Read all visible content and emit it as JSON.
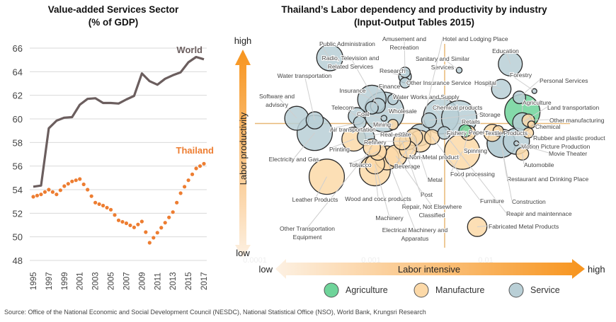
{
  "source": "Source: Office of the National Economic and Social Development Council (NESDC), National Statistical Office (NSO), World Bank, Krungsri Research",
  "colors": {
    "world": "#6b5e5e",
    "thailand": "#ed7d31",
    "agriculture": "#6fd49a",
    "manufacture": "#fcd9a8",
    "service": "#b9cfd6",
    "axis_arrow": "#f7941d",
    "gridline": "#d9d9d9",
    "quadrant_line": "#e8b877"
  },
  "chart_data": [
    {
      "type": "line",
      "title": "Value-added Services Sector\n(% of GDP)",
      "title_lines": [
        "Value-added Services Sector",
        "(% of GDP)"
      ],
      "xlabel": "",
      "ylabel": "",
      "ylim": [
        48,
        66
      ],
      "yticks": [
        48,
        50,
        52,
        54,
        56,
        58,
        60,
        62,
        64,
        66
      ],
      "xtick_labels": [
        "1995",
        "1997",
        "1999",
        "2001",
        "2003",
        "2005",
        "2007",
        "2009",
        "2011",
        "2013",
        "2015",
        "2017"
      ],
      "grid": true,
      "x": [
        1995,
        1996,
        1997,
        1998,
        1999,
        2000,
        2001,
        2002,
        2003,
        2004,
        2005,
        2006,
        2007,
        2008,
        2009,
        2010,
        2011,
        2012,
        2013,
        2014,
        2015,
        2016,
        2017
      ],
      "series": [
        {
          "name": "World",
          "style": "solid",
          "values": [
            54.25,
            54.35,
            59.2,
            59.85,
            60.1,
            60.15,
            61.2,
            61.7,
            61.75,
            61.35,
            61.35,
            61.3,
            61.65,
            61.95,
            63.85,
            63.2,
            62.9,
            63.4,
            63.7,
            63.95,
            64.8,
            65.25,
            65.05
          ]
        },
        {
          "name": "Thailand",
          "style": "dotted",
          "values": [
            53.4,
            53.6,
            54.0,
            53.6,
            54.3,
            54.7,
            54.9,
            54.0,
            52.9,
            52.65,
            52.3,
            51.4,
            51.15,
            50.8,
            51.3,
            49.5,
            50.35,
            51.2,
            52.1,
            53.7,
            54.8,
            55.8,
            56.2
          ]
        }
      ]
    },
    {
      "type": "scatter",
      "subtype": "bubble",
      "title": "Thailand’s Labor dependency and productivity by industry\n(Input-Output Tables 2015)",
      "title_lines": [
        "Thailand’s Labor dependency and productivity by industry",
        "(Input-Output Tables 2015)"
      ],
      "xlabel": "Labor intensive",
      "ylabel": "Labor productivity",
      "x_axis_ends": {
        "low": "low",
        "high": "high"
      },
      "y_axis_ends": {
        "low": "low",
        "high": "high"
      },
      "x_scale": "log",
      "faint_xtick_labels": [
        "0.0001",
        "0.001",
        "0.01"
      ],
      "legend": {
        "placement": "bottom",
        "entries": [
          {
            "name": "Agriculture",
            "key": "agriculture"
          },
          {
            "name": "Manufacture",
            "key": "manufacture"
          },
          {
            "name": "Service",
            "key": "service"
          }
        ]
      },
      "note": "Positions in relative chart units (x: 0 = low labor intensity, 100 = high; y: 0 = low productivity, 100 = high). Size in relative units.",
      "points": [
        {
          "name": "Public Administration",
          "group": "service",
          "x": 19,
          "y": 91,
          "size": 5,
          "label": "Public Administration"
        },
        {
          "name": "Radio, Television and Related Services",
          "group": "service",
          "x": 35,
          "y": 68,
          "size": 2.5,
          "label": "Radio, Television and\nRelated Services"
        },
        {
          "name": "Water transportation",
          "group": "service",
          "x": 14,
          "y": 61,
          "size": 3,
          "label": "Water transportation"
        },
        {
          "name": "Software and advisory",
          "group": "service",
          "x": 8,
          "y": 62,
          "size": 4.5,
          "label": "Software and\nadvisory"
        },
        {
          "name": "Electricity and Gas",
          "group": "service",
          "x": 14,
          "y": 55,
          "size": 7,
          "label": "Electricity and Gas"
        },
        {
          "name": "Telecom",
          "group": "service",
          "x": 28,
          "y": 63,
          "size": 3,
          "label": "Telecom"
        },
        {
          "name": "Coal",
          "group": "service",
          "x": 37,
          "y": 62,
          "size": 0.5,
          "label": "Coal"
        },
        {
          "name": "Insurance",
          "group": "service",
          "x": 33,
          "y": 71,
          "size": 5.5,
          "label": "Insurance"
        },
        {
          "name": "Finance",
          "group": "service",
          "x": 33,
          "y": 67,
          "size": 2,
          "label": "Finance"
        },
        {
          "name": "Research",
          "group": "service",
          "x": 44,
          "y": 82,
          "size": 2,
          "label": "Research"
        },
        {
          "name": "Other Insurance Service",
          "group": "service",
          "x": 44,
          "y": 79,
          "size": 1.5,
          "label": "Other Insurance Service"
        },
        {
          "name": "Amusement and Recreation",
          "group": "service",
          "x": 44,
          "y": 84,
          "size": 1.5,
          "label": "Amusement and\nRecreation"
        },
        {
          "name": "Sanitary and Similar Services",
          "group": "service",
          "x": 62,
          "y": 85,
          "size": 0.5,
          "label": "Sanitary and Similar\nServices"
        },
        {
          "name": "Hotel and Lodging Place",
          "group": "service",
          "x": 49,
          "y": 54,
          "size": 4,
          "label": "Hotel and Lodging Place"
        },
        {
          "name": "Education",
          "group": "service",
          "x": 79,
          "y": 88,
          "size": 4.5,
          "label": "Education"
        },
        {
          "name": "Hospital",
          "group": "service",
          "x": 76,
          "y": 76,
          "size": 3.5,
          "label": "Hospital"
        },
        {
          "name": "Forestry",
          "group": "service",
          "x": 87,
          "y": 75,
          "size": 0.3,
          "label": "Forestry"
        },
        {
          "name": "Personal Services",
          "group": "service",
          "x": 82,
          "y": 72,
          "size": 2,
          "label": "Personal Services"
        },
        {
          "name": "Water Works and Supply",
          "group": "service",
          "x": 40,
          "y": 71,
          "size": 1.5,
          "label": "Water Works and Supply"
        },
        {
          "name": "Wholesale",
          "group": "service",
          "x": 37,
          "y": 65,
          "size": 8,
          "label": "Wholesale"
        },
        {
          "name": "Air transportation",
          "group": "service",
          "x": 29,
          "y": 60,
          "size": 2,
          "label": "Air transportation"
        },
        {
          "name": "Mining",
          "group": "manufacture",
          "x": 40,
          "y": 59,
          "size": 1.5,
          "label": "Mining"
        },
        {
          "name": "Chemical products",
          "group": "service",
          "x": 56,
          "y": 63,
          "size": 7,
          "label": "Chemical products"
        },
        {
          "name": "Storage",
          "group": "service",
          "x": 52,
          "y": 61,
          "size": 2.5,
          "label": "Storage"
        },
        {
          "name": "Retails",
          "group": "service",
          "x": 62,
          "y": 62,
          "size": 7,
          "label": "Retails"
        },
        {
          "name": "Agriculture",
          "group": "agriculture",
          "x": 83,
          "y": 65,
          "size": 7,
          "label": "Agriculture"
        },
        {
          "name": "Land transportation",
          "group": "service",
          "x": 83,
          "y": 60,
          "size": 3.5,
          "label": "Land transportation"
        },
        {
          "name": "Other manufacturing",
          "group": "manufacture",
          "x": 85,
          "y": 61,
          "size": 2,
          "label": "Other manufacturing"
        },
        {
          "name": "Chemical",
          "group": "manufacture",
          "x": 86,
          "y": 59,
          "size": 0.8,
          "label": "Chemical"
        },
        {
          "name": "Rubber and plastic product",
          "group": "manufacture",
          "x": 85,
          "y": 55,
          "size": 1.5,
          "label": "Rubber and plastic product"
        },
        {
          "name": "Motion Picture Production",
          "group": "service",
          "x": 81,
          "y": 51,
          "size": 5,
          "label": "Motion Picture Production"
        },
        {
          "name": "Movie Theater",
          "group": "service",
          "x": 81,
          "y": 50,
          "size": 0.3,
          "label": "Movie Theater"
        },
        {
          "name": "Automobile",
          "group": "manufacture",
          "x": 83,
          "y": 45,
          "size": 2,
          "label": "Automobile"
        },
        {
          "name": "Restaurant and Drinking Place",
          "group": "service",
          "x": 76,
          "y": 50,
          "size": 5.5,
          "label": "Restaurant and Drinking Place"
        },
        {
          "name": "Construction",
          "group": "service",
          "x": 76,
          "y": 50,
          "size": 5.5,
          "label": "Construction"
        },
        {
          "name": "Repair and maintenance",
          "group": "service",
          "x": 57,
          "y": 55,
          "size": 2,
          "label": "Reapir and maintennace"
        },
        {
          "name": "Fishery",
          "group": "agriculture",
          "x": 64,
          "y": 56,
          "size": 2,
          "label": "Fishery"
        },
        {
          "name": "Paper",
          "group": "manufacture",
          "x": 73,
          "y": 55,
          "size": 3,
          "label": "Paper"
        },
        {
          "name": "Textile Products",
          "group": "manufacture",
          "x": 75,
          "y": 56,
          "size": 1.5,
          "label": "Textile Products"
        },
        {
          "name": "Spinning",
          "group": "manufacture",
          "x": 65,
          "y": 55,
          "size": 2.5,
          "label": "Spinning"
        },
        {
          "name": "Food processing",
          "group": "manufacture",
          "x": 63,
          "y": 46,
          "size": 7,
          "label": "Food processing"
        },
        {
          "name": "Furniture",
          "group": "manufacture",
          "x": 53,
          "y": 53,
          "size": 2.5,
          "label": "Furniture"
        },
        {
          "name": "Real-estate",
          "group": "service",
          "x": 31,
          "y": 53,
          "size": 3,
          "label": "Real-estate"
        },
        {
          "name": "Refinery",
          "group": "service",
          "x": 45,
          "y": 51,
          "size": 3,
          "label": "Refinery"
        },
        {
          "name": "Printing",
          "group": "manufacture",
          "x": 27,
          "y": 52,
          "size": 4.5,
          "label": "Printing"
        },
        {
          "name": "Non-Metal product",
          "group": "manufacture",
          "x": 49,
          "y": 51,
          "size": 4,
          "label": "Non-Metal product"
        },
        {
          "name": "Metal",
          "group": "manufacture",
          "x": 47,
          "y": 53,
          "size": 3,
          "label": "Metal"
        },
        {
          "name": "Beverage",
          "group": "manufacture",
          "x": 45,
          "y": 47,
          "size": 3,
          "label": "Beverage"
        },
        {
          "name": "Tobacco",
          "group": "manufacture",
          "x": 35,
          "y": 46,
          "size": 3,
          "label": "Tobacco"
        },
        {
          "name": "Post",
          "group": "manufacture",
          "x": 43,
          "y": 51,
          "size": 3,
          "label": "Post"
        },
        {
          "name": "Wood and cock products",
          "group": "manufacture",
          "x": 34,
          "y": 37,
          "size": 6,
          "label": "Wood and cock products"
        },
        {
          "name": "Repair, Not Elsewhere Classified",
          "group": "manufacture",
          "x": 41,
          "y": 44,
          "size": 4,
          "label": "Repair, Not Elsewhere\nClassified"
        },
        {
          "name": "Machinery",
          "group": "manufacture",
          "x": 34,
          "y": 40,
          "size": 3.5,
          "label": "Machinery"
        },
        {
          "name": "Electrical Machinery and Apparatus",
          "group": "manufacture",
          "x": 38,
          "y": 43,
          "size": 4.5,
          "label": "Electrical Machinery and\nApparatus"
        },
        {
          "name": "Other Transportation Equipment",
          "group": "manufacture",
          "x": 33,
          "y": 48,
          "size": 3,
          "label": "Other Transportation\nEquipment"
        },
        {
          "name": "Leather Products",
          "group": "manufacture",
          "x": 18,
          "y": 34,
          "size": 7,
          "label": "Leather Products"
        },
        {
          "name": "Fabricated Metal Products",
          "group": "manufacture",
          "x": 68,
          "y": 10,
          "size": 3.5,
          "label": "Fabricated Metal Products"
        }
      ]
    }
  ]
}
